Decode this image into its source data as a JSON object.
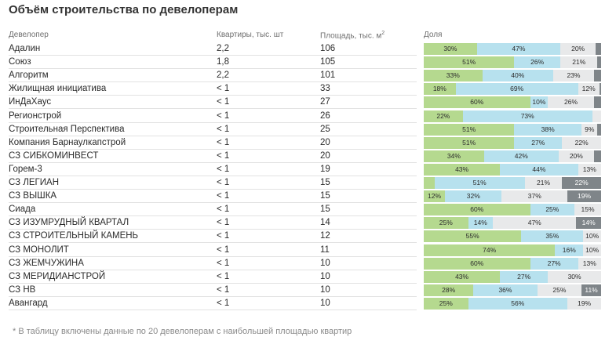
{
  "title": "Объём строительства по девелоперам",
  "columns": {
    "developer": "Девелопер",
    "apartments": "Квартиры, тыс. шт",
    "area": "Площадь, тыс. м",
    "area_unit_sup": "2",
    "share": "Доля"
  },
  "colors": {
    "seg1": "#b5d98f",
    "seg2": "#b7e1ee",
    "seg3": "#e8e9ea",
    "seg4": "#7f8589"
  },
  "rows": [
    {
      "name": "Адалин",
      "apartments": "2,2",
      "area": "106",
      "shares": [
        30,
        47,
        20,
        3
      ],
      "labels": [
        "30%",
        "47%",
        "20%",
        ""
      ]
    },
    {
      "name": "Союз",
      "apartments": "1,8",
      "area": "105",
      "shares": [
        51,
        26,
        21,
        2
      ],
      "labels": [
        "51%",
        "26%",
        "21%",
        ""
      ]
    },
    {
      "name": "Алгоритм",
      "apartments": "2,2",
      "area": "101",
      "shares": [
        33,
        40,
        23,
        4
      ],
      "labels": [
        "33%",
        "40%",
        "23%",
        ""
      ]
    },
    {
      "name": "Жилищная инициатива",
      "apartments": "< 1",
      "area": "33",
      "shares": [
        18,
        69,
        12,
        1
      ],
      "labels": [
        "18%",
        "69%",
        "12%",
        ""
      ]
    },
    {
      "name": "ИнДаХаус",
      "apartments": "< 1",
      "area": "27",
      "shares": [
        60,
        10,
        26,
        4
      ],
      "labels": [
        "60%",
        "10%",
        "26%",
        ""
      ]
    },
    {
      "name": "Регионстрой",
      "apartments": "< 1",
      "area": "26",
      "shares": [
        22,
        73,
        5,
        0
      ],
      "labels": [
        "22%",
        "73%",
        "",
        ""
      ]
    },
    {
      "name": "Строительная Перспектива",
      "apartments": "< 1",
      "area": "25",
      "shares": [
        51,
        38,
        9,
        2
      ],
      "labels": [
        "51%",
        "38%",
        "9%",
        ""
      ]
    },
    {
      "name": "Компания Барнаулкапстрой",
      "apartments": "< 1",
      "area": "20",
      "shares": [
        51,
        27,
        22,
        0
      ],
      "labels": [
        "51%",
        "27%",
        "22%",
        ""
      ]
    },
    {
      "name": "СЗ СИБКОМИНВЕСТ",
      "apartments": "< 1",
      "area": "20",
      "shares": [
        34,
        42,
        20,
        4
      ],
      "labels": [
        "34%",
        "42%",
        "20%",
        ""
      ]
    },
    {
      "name": "Горем-3",
      "apartments": "< 1",
      "area": "19",
      "shares": [
        43,
        44,
        13,
        0
      ],
      "labels": [
        "43%",
        "44%",
        "13%",
        ""
      ]
    },
    {
      "name": "СЗ ЛЕГИАН",
      "apartments": "< 1",
      "area": "15",
      "shares": [
        6,
        51,
        21,
        22
      ],
      "labels": [
        "",
        "51%",
        "21%",
        "22%"
      ]
    },
    {
      "name": "СЗ ВЫШКА",
      "apartments": "< 1",
      "area": "15",
      "shares": [
        12,
        32,
        37,
        19
      ],
      "labels": [
        "12%",
        "32%",
        "37%",
        "19%"
      ]
    },
    {
      "name": "Сиада",
      "apartments": "< 1",
      "area": "15",
      "shares": [
        60,
        25,
        15,
        0
      ],
      "labels": [
        "60%",
        "25%",
        "15%",
        ""
      ]
    },
    {
      "name": "СЗ ИЗУМРУДНЫЙ КВАРТАЛ",
      "apartments": "< 1",
      "area": "14",
      "shares": [
        25,
        14,
        47,
        14
      ],
      "labels": [
        "25%",
        "14%",
        "47%",
        "14%"
      ]
    },
    {
      "name": "СЗ СТРОИТЕЛЬНЫЙ КАМЕНЬ",
      "apartments": "< 1",
      "area": "12",
      "shares": [
        55,
        35,
        10,
        0
      ],
      "labels": [
        "55%",
        "35%",
        "10%",
        ""
      ]
    },
    {
      "name": "СЗ МОНОЛИТ",
      "apartments": "< 1",
      "area": "11",
      "shares": [
        74,
        16,
        10,
        0
      ],
      "labels": [
        "74%",
        "16%",
        "10%",
        ""
      ]
    },
    {
      "name": "СЗ ЖЕМЧУЖИНА",
      "apartments": "< 1",
      "area": "10",
      "shares": [
        60,
        27,
        13,
        0
      ],
      "labels": [
        "60%",
        "27%",
        "13%",
        ""
      ]
    },
    {
      "name": "СЗ МЕРИДИАНСТРОЙ",
      "apartments": "< 1",
      "area": "10",
      "shares": [
        43,
        27,
        30,
        0
      ],
      "labels": [
        "43%",
        "27%",
        "30%",
        ""
      ]
    },
    {
      "name": "СЗ НВ",
      "apartments": "< 1",
      "area": "10",
      "shares": [
        28,
        36,
        25,
        11
      ],
      "labels": [
        "28%",
        "36%",
        "25%",
        "11%"
      ]
    },
    {
      "name": "Авангард",
      "apartments": "< 1",
      "area": "10",
      "shares": [
        25,
        56,
        19,
        0
      ],
      "labels": [
        "25%",
        "56%",
        "19%",
        ""
      ]
    }
  ],
  "footnote": "* В таблицу включены данные по 20 девелоперам с наибольшей площадью квартир"
}
